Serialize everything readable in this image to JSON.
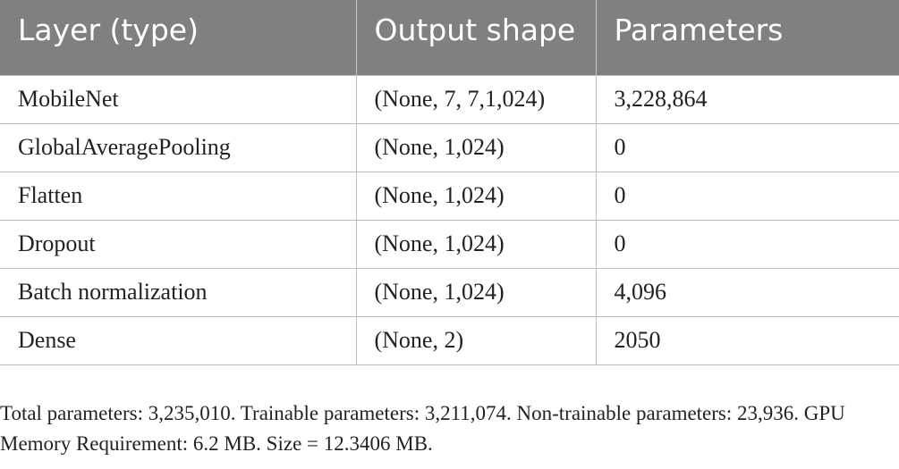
{
  "table": {
    "headers": [
      "Layer (type)",
      "Output shape",
      "Parameters"
    ],
    "rows": [
      [
        "MobileNet",
        "(None, 7, 7,1,024)",
        "3,228,864"
      ],
      [
        "GlobalAveragePooling",
        "(None, 1,024)",
        "0"
      ],
      [
        "Flatten",
        "(None, 1,024)",
        "0"
      ],
      [
        "Dropout",
        "(None, 1,024)",
        "0"
      ],
      [
        "Batch normalization",
        "(None, 1,024)",
        "4,096"
      ],
      [
        "Dense",
        "(None, 2)",
        "2050"
      ]
    ]
  },
  "footnote": "Total parameters: 3,235,010. Trainable parameters: 3,211,074. Non-trainable parameters: 23,936. GPU Memory Requirement: 6.2 MB. Size = 12.3406 MB."
}
